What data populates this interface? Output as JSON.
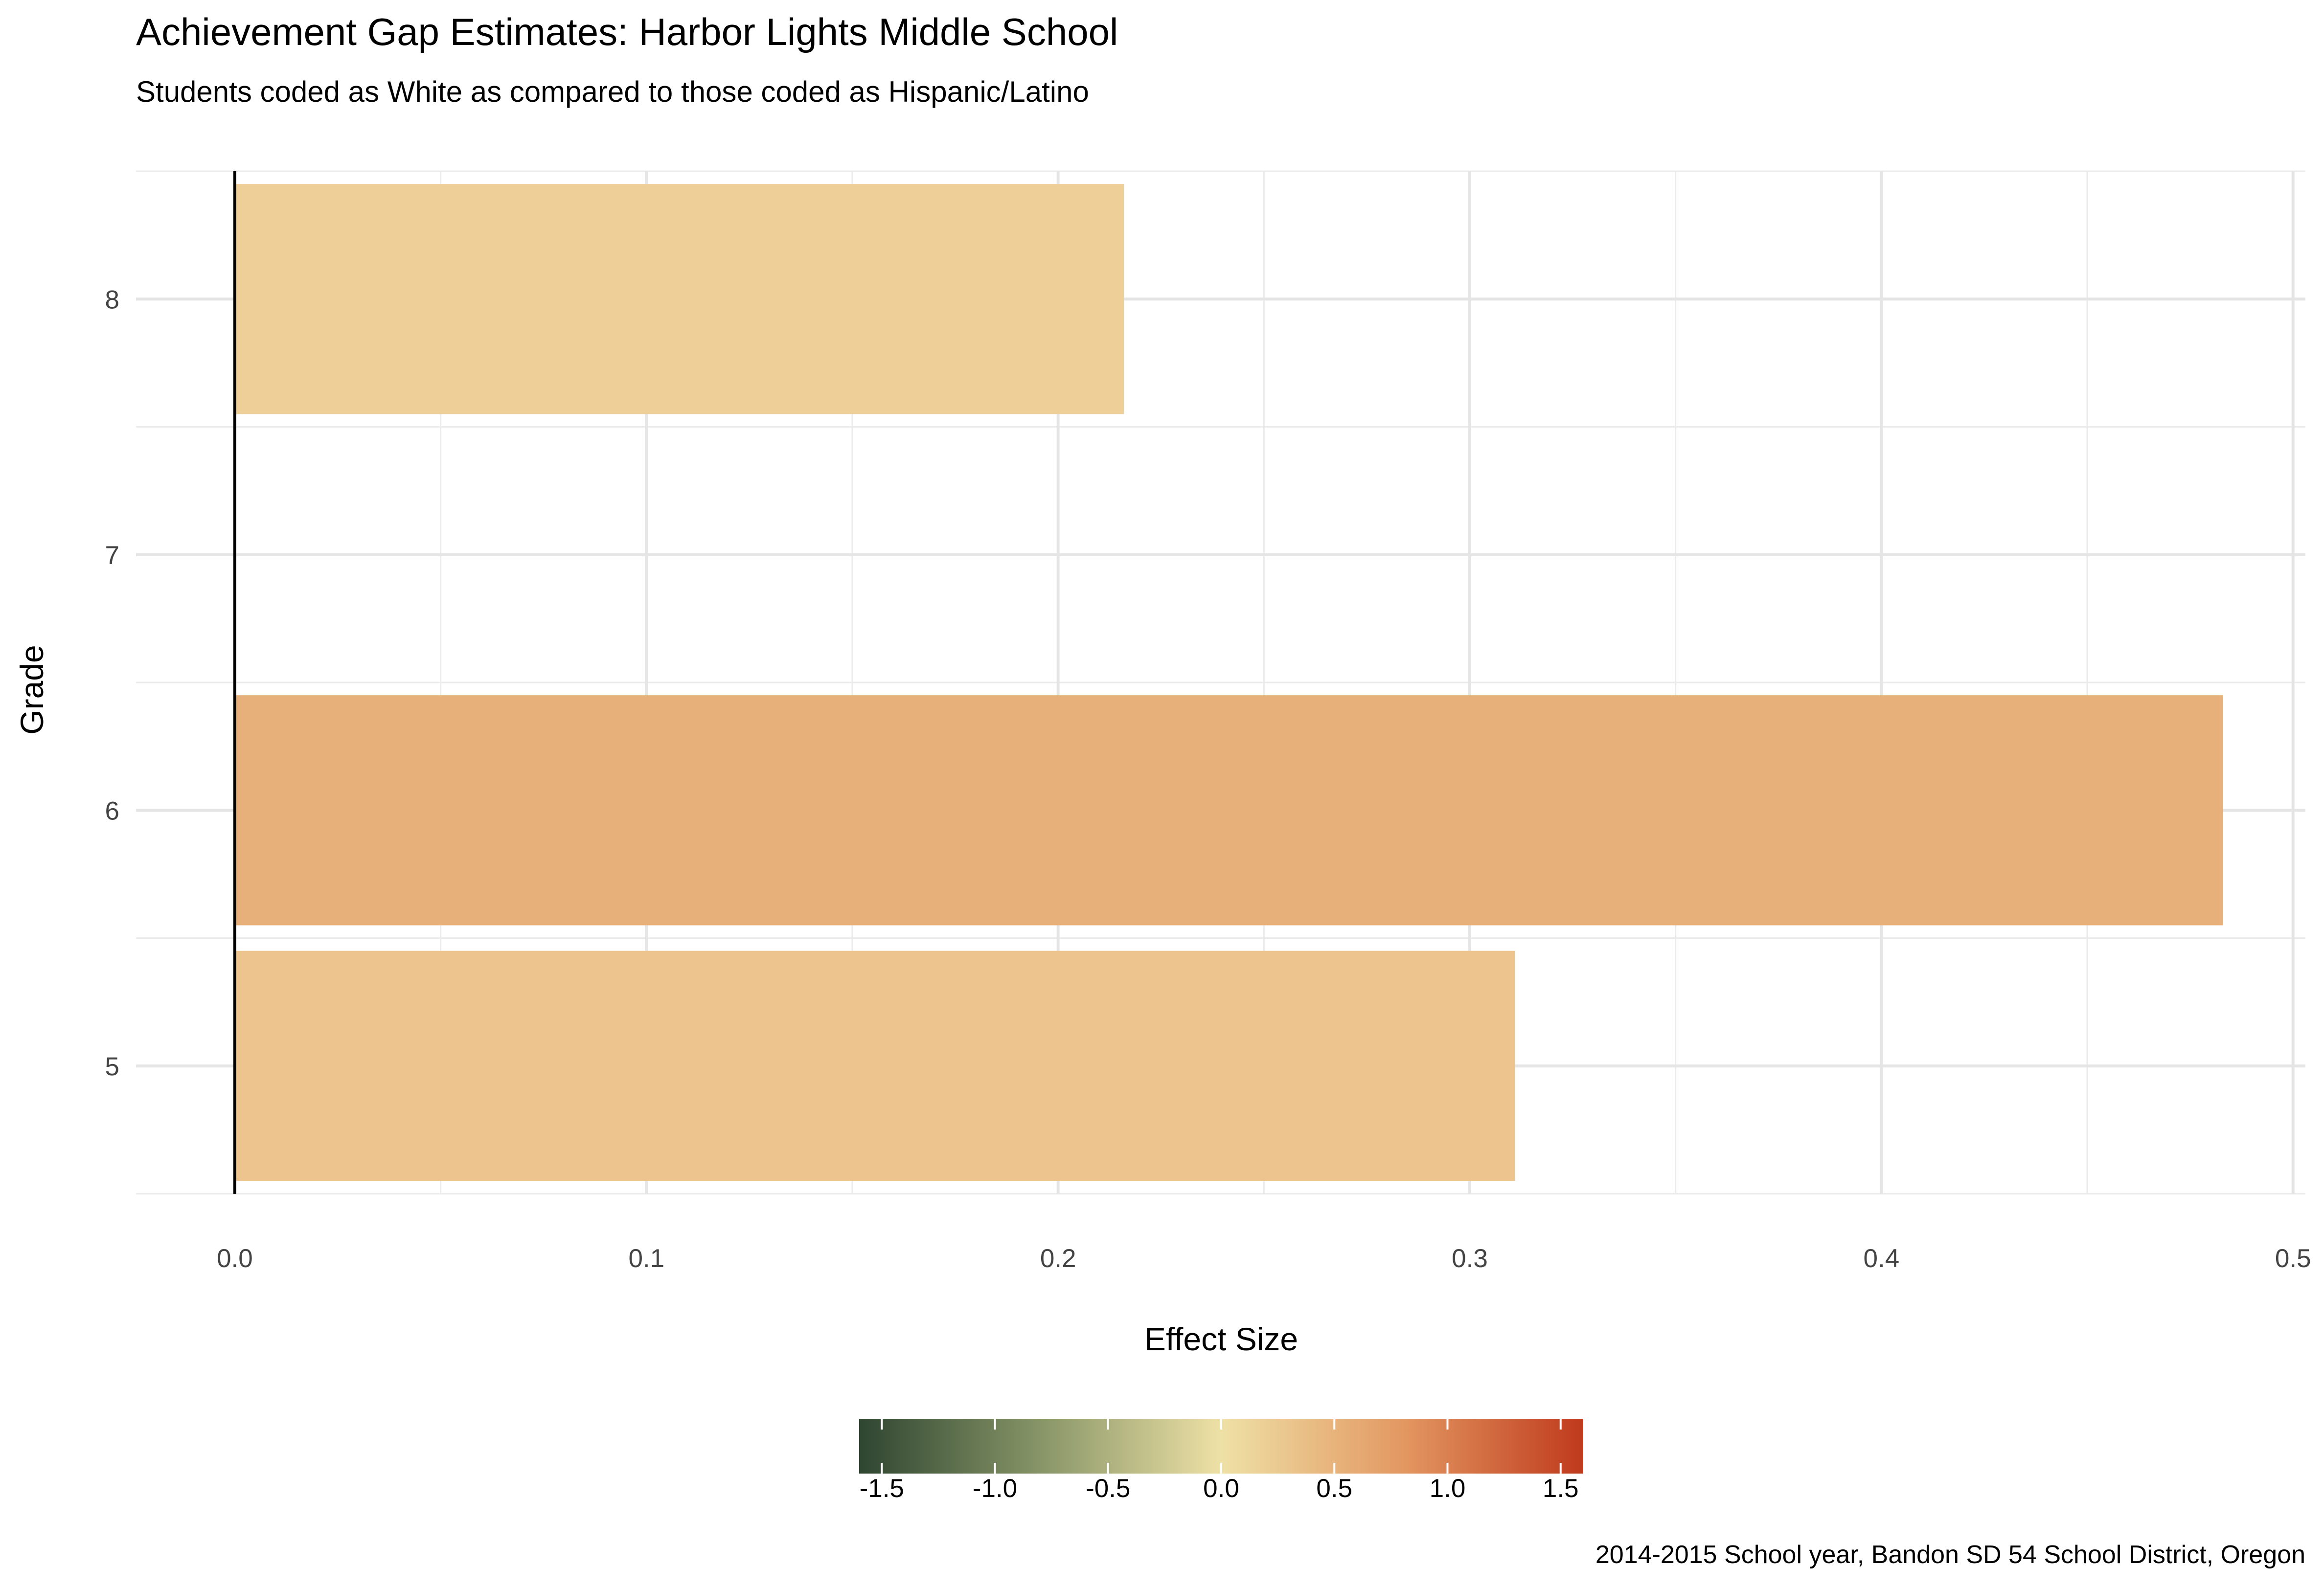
{
  "chart_data": {
    "type": "bar",
    "orientation": "horizontal",
    "title": "Achievement Gap Estimates: Harbor Lights Middle School",
    "subtitle": "Students coded as White as compared to those coded as Hispanic/Latino",
    "xlabel": "Effect Size",
    "ylabel": "Grade",
    "caption": "2014-2015 School year, Bandon SD 54 School District, Oregon",
    "categories": [
      "5",
      "6",
      "7",
      "8"
    ],
    "values": [
      0.311,
      0.483,
      null,
      0.216
    ],
    "bar_colors": [
      "#EDC48D",
      "#E7B07B",
      null,
      "#EFCF98"
    ],
    "xlim": [
      -0.024,
      0.503
    ],
    "x_ticks": [
      "0.0",
      "0.1",
      "0.2",
      "0.3",
      "0.4",
      "0.5"
    ],
    "grid": true,
    "legend": {
      "type": "colorbar",
      "placement": "bottom",
      "range": [
        -1.6,
        1.6
      ],
      "ticks": [
        "-1.5",
        "-1.0",
        "-0.5",
        "0.0",
        "0.5",
        "1.0",
        "1.5"
      ],
      "colors": [
        "#2E4530",
        "#879567",
        "#EEE1A6",
        "#E39862",
        "#BF3A1C"
      ]
    }
  }
}
